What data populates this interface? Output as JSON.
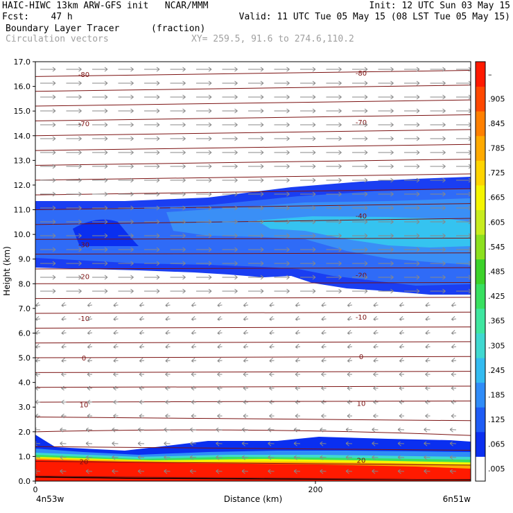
{
  "header": {
    "line1_left": "HAIC-HIWC 13km ARW-GFS init   NCAR/MMM",
    "line1_right": "Init: 12 UTC Sun 03 May 15",
    "line2_left": "Fcst:    47 h",
    "line2_right": "Valid: 11 UTC Tue 05 May 15 (08 LST Tue 05 May 15)",
    "field_name": "Boundary Layer Tracer",
    "field_units": "(fraction)",
    "vector_name": "Circulation vectors",
    "xsec_coords": "XY= 259.5, 91.6 to 274.6,110.2"
  },
  "chart_data": {
    "type": "heatmap",
    "title": "Boundary Layer Tracer (fraction)",
    "ylabel": "Height (km)",
    "xlabel": "Distance (km)",
    "ylim": [
      0,
      17
    ],
    "x_ticks": [
      "0",
      "200"
    ],
    "x_endpoints": [
      "4n53w",
      "6n51w"
    ],
    "y_ticks": [
      "0.0",
      "1.0",
      "2.0",
      "3.0",
      "4.0",
      "5.0",
      "6.0",
      "7.0",
      "8.0",
      "9.0",
      "10.0",
      "11.0",
      "12.0",
      "13.0",
      "14.0",
      "15.0",
      "16.0",
      "17.0"
    ],
    "colorbar_labels": [
      ".005",
      ".065",
      ".125",
      ".185",
      ".245",
      ".305",
      ".365",
      ".425",
      ".485",
      ".545",
      ".605",
      ".665",
      ".725",
      ".785",
      ".845",
      ".905",
      "–"
    ],
    "colorbar_colors": [
      "#ffffff",
      "#0a2ff0",
      "#1e5cf5",
      "#2f8cf8",
      "#33bbf0",
      "#3fd8d0",
      "#3ee6a0",
      "#38e060",
      "#3cd22a",
      "#8ce01e",
      "#c8ec1e",
      "#f5f500",
      "#ffd400",
      "#ffaa00",
      "#ff8000",
      "#ff4800",
      "#ff1a00"
    ],
    "temperature_contours": [
      {
        "label": "-80",
        "height_km": 16.5
      },
      {
        "label": "-70",
        "height_km": 14.5
      },
      {
        "label": "-40",
        "height_km": 10.7
      },
      {
        "label": "-30",
        "height_km": 9.6
      },
      {
        "label": "-20",
        "height_km": 8.3
      },
      {
        "label": "-10",
        "height_km": 6.6
      },
      {
        "label": "0",
        "height_km": 5.0
      },
      {
        "label": "10",
        "height_km": 3.1
      },
      {
        "label": "20",
        "height_km": 0.8
      }
    ]
  }
}
